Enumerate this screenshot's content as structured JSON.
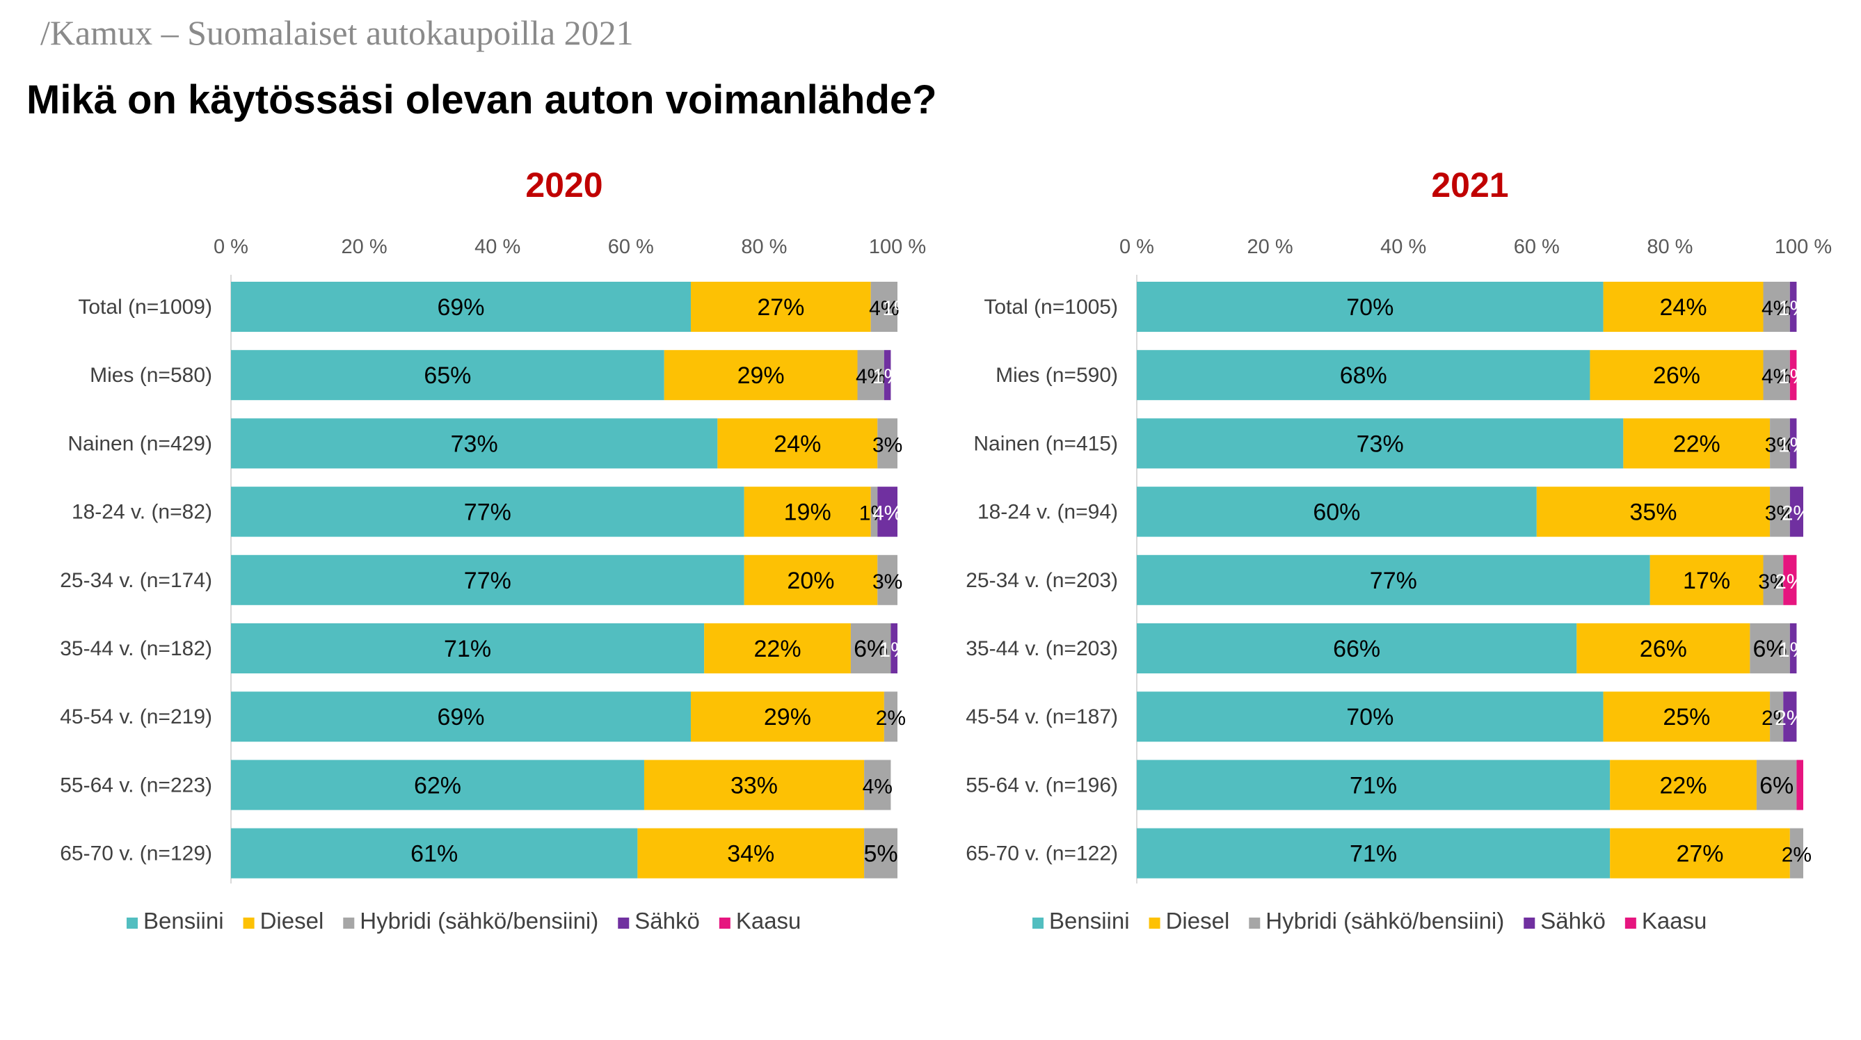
{
  "header": "/Kamux – Suomalaiset autokaupoilla 2021",
  "question": "Mikä on käytössäsi olevan auton voimanlähde?",
  "colors": {
    "Bensiini": "#52bec0",
    "Diesel": "#fdc104",
    "Hybridi (sähkö/bensiini)": "#a6a6a6",
    "Sähkö": "#7030a0",
    "Kaasu": "#e6157f",
    "title": "#c00000"
  },
  "chart_data": [
    {
      "type": "bar",
      "orientation": "horizontal-stacked",
      "title": "2020",
      "xlim": [
        0,
        100
      ],
      "xticks": [
        "0 %",
        "20 %",
        "40 %",
        "60 %",
        "80 %",
        "100 %"
      ],
      "legend_placement": "bottom",
      "categories": [
        "Total (n=1009)",
        "Mies (n=580)",
        "Nainen (n=429)",
        "18-24 v. (n=82)",
        "25-34 v. (n=174)",
        "35-44 v. (n=182)",
        "45-54 v. (n=219)",
        "55-64 v. (n=223)",
        "65-70 v. (n=129)"
      ],
      "series": [
        {
          "name": "Bensiini",
          "values": [
            69,
            65,
            73,
            77,
            77,
            71,
            69,
            62,
            61
          ],
          "labels": [
            "69%",
            "65%",
            "73%",
            "77%",
            "77%",
            "71%",
            "69%",
            "62%",
            "61%"
          ]
        },
        {
          "name": "Diesel",
          "values": [
            27,
            29,
            24,
            19,
            20,
            22,
            29,
            33,
            34
          ],
          "labels": [
            "27%",
            "29%",
            "24%",
            "19%",
            "20%",
            "22%",
            "29%",
            "33%",
            "34%"
          ]
        },
        {
          "name": "Hybridi (sähkö/bensiini)",
          "values": [
            4,
            4,
            3,
            1,
            3,
            6,
            2,
            4,
            5
          ],
          "labels": [
            "4%",
            "4%",
            "3%",
            "1%",
            "3%",
            "6%",
            "2%",
            "4%",
            "5%"
          ]
        },
        {
          "name": "Sähkö",
          "values": [
            1,
            1,
            0,
            4,
            0,
            1,
            0.4,
            0,
            0
          ],
          "labels": [
            "1%",
            "1%",
            "",
            "4%",
            "",
            "1%",
            "",
            "",
            ""
          ]
        },
        {
          "name": "Kaasu",
          "values": [
            0,
            0,
            0,
            0,
            0,
            0,
            0,
            0,
            0
          ],
          "labels": [
            "",
            "",
            "",
            "",
            "",
            "",
            "",
            "",
            ""
          ]
        }
      ]
    },
    {
      "type": "bar",
      "orientation": "horizontal-stacked",
      "title": "2021",
      "xlim": [
        0,
        100
      ],
      "xticks": [
        "0 %",
        "20 %",
        "40 %",
        "60 %",
        "80 %",
        "100 %"
      ],
      "legend_placement": "bottom",
      "categories": [
        "Total (n=1005)",
        "Mies (n=590)",
        "Nainen (n=415)",
        "18-24 v. (n=94)",
        "25-34 v. (n=203)",
        "35-44 v. (n=203)",
        "45-54 v. (n=187)",
        "55-64 v. (n=196)",
        "65-70 v. (n=122)"
      ],
      "series": [
        {
          "name": "Bensiini",
          "values": [
            70,
            68,
            73,
            60,
            77,
            66,
            70,
            71,
            71
          ],
          "labels": [
            "70%",
            "68%",
            "73%",
            "60%",
            "77%",
            "66%",
            "70%",
            "71%",
            "71%"
          ]
        },
        {
          "name": "Diesel",
          "values": [
            24,
            26,
            22,
            35,
            17,
            26,
            25,
            22,
            27
          ],
          "labels": [
            "24%",
            "26%",
            "22%",
            "35%",
            "17%",
            "26%",
            "25%",
            "22%",
            "27%"
          ]
        },
        {
          "name": "Hybridi (sähkö/bensiini)",
          "values": [
            4,
            4,
            3,
            3,
            3,
            6,
            2,
            6,
            2
          ],
          "labels": [
            "4%",
            "4%",
            "3%",
            "3%",
            "3%",
            "6%",
            "2%",
            "6%",
            "2%"
          ]
        },
        {
          "name": "Sähkö",
          "values": [
            1,
            0,
            1,
            2,
            0,
            1,
            2,
            0,
            0
          ],
          "labels": [
            "1%",
            "",
            "1%",
            "2%",
            "",
            "1%",
            "2%",
            "",
            ""
          ]
        },
        {
          "name": "Kaasu",
          "values": [
            0,
            1,
            0,
            0,
            2,
            0,
            0,
            1,
            0
          ],
          "labels": [
            "",
            "1%",
            "",
            "",
            "2%",
            "",
            "",
            "",
            ""
          ]
        }
      ]
    }
  ]
}
